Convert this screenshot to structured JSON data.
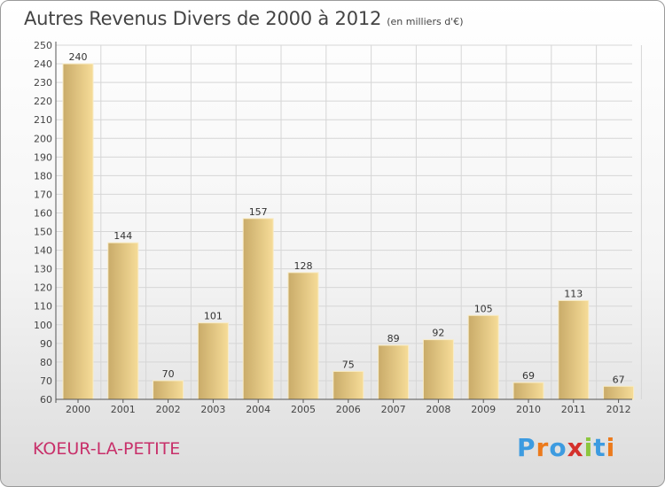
{
  "header": {
    "title": "Autres Revenus Divers de 2000 à 2012",
    "subtitle": "(en milliers d'€)"
  },
  "footer": {
    "town": "KOEUR-LA-PETITE",
    "logo_letters": [
      "P",
      "r",
      "o",
      "x",
      "i",
      "t",
      "i"
    ]
  },
  "colors": {
    "bar_light": "#f6dc98",
    "bar_dark": "#c9ab69",
    "grid": "#d6d6d6",
    "town": "#c8306a"
  },
  "chart_data": {
    "type": "bar",
    "categories": [
      "2000",
      "2001",
      "2002",
      "2003",
      "2004",
      "2005",
      "2006",
      "2007",
      "2008",
      "2009",
      "2010",
      "2011",
      "2012"
    ],
    "values": [
      240,
      144,
      70,
      101,
      157,
      128,
      75,
      89,
      92,
      105,
      69,
      113,
      67
    ],
    "ylim": [
      60,
      250
    ],
    "yticks": [
      60,
      70,
      80,
      90,
      100,
      110,
      120,
      130,
      140,
      150,
      160,
      170,
      180,
      190,
      200,
      210,
      220,
      230,
      240,
      250
    ],
    "grid": true,
    "data_labels": true
  }
}
